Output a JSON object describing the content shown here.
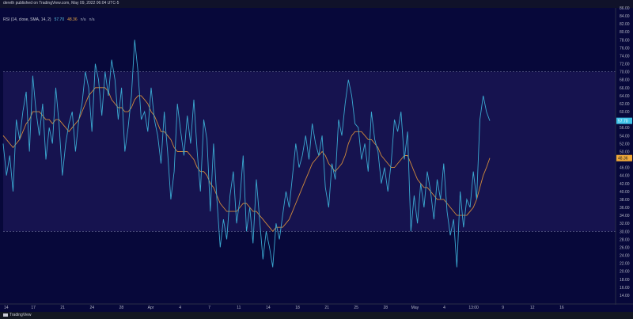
{
  "header": {
    "publish_text": "dereth published on TradingView.com, May 09, 2022 06:04 UTC-5"
  },
  "indicator": {
    "name": "RSI (14, close, SMA, 14, 2)",
    "value_rsi": "57.70",
    "value_ma": "48.36",
    "na1": "n/a",
    "na2": "n/a"
  },
  "footer": {
    "brand": "TradingView"
  },
  "colors": {
    "background": "#07083a",
    "band_fill": "#16134f",
    "rsi_line": "#3ba9d1",
    "ma_line": "#d08a3c",
    "rsi_label_bg": "#3ec3e8",
    "ma_label_bg": "#f0a93a"
  },
  "chart_data": {
    "type": "line",
    "title": "RSI (14, close, SMA, 14, 2)",
    "ylim": [
      12,
      86
    ],
    "y_ticks": [
      "86.00",
      "84.00",
      "82.00",
      "80.00",
      "78.00",
      "76.00",
      "74.00",
      "72.00",
      "70.00",
      "68.00",
      "66.00",
      "64.00",
      "62.00",
      "60.00",
      "58.00",
      "56.00",
      "54.00",
      "52.00",
      "50.00",
      "48.00",
      "46.00",
      "44.00",
      "42.00",
      "40.00",
      "38.00",
      "36.00",
      "34.00",
      "32.00",
      "30.00",
      "28.00",
      "26.00",
      "24.00",
      "22.00",
      "20.00",
      "18.00",
      "16.00",
      "14.00"
    ],
    "x_ticks": [
      "14",
      "17",
      "21",
      "24",
      "28",
      "Apr",
      "4",
      "7",
      "11",
      "14",
      "18",
      "21",
      "25",
      "28",
      "May",
      "4",
      "13:00",
      "9",
      "12",
      "16"
    ],
    "band": {
      "upper": 70,
      "lower": 30
    },
    "last_values": {
      "rsi": 57.7,
      "ma": 48.36
    },
    "series": [
      {
        "name": "RSI",
        "values": [
          52,
          44,
          49,
          40,
          58,
          53,
          60,
          65,
          50,
          69,
          60,
          54,
          62,
          48,
          56,
          52,
          66,
          57,
          44,
          52,
          57,
          60,
          50,
          58,
          62,
          70,
          66,
          55,
          72,
          68,
          59,
          70,
          64,
          73,
          68,
          58,
          66,
          50,
          56,
          64,
          78,
          70,
          58,
          60,
          55,
          66,
          58,
          54,
          47,
          60,
          50,
          38,
          45,
          62,
          55,
          49,
          59,
          52,
          63,
          50,
          40,
          58,
          53,
          35,
          52,
          38,
          26,
          33,
          28,
          39,
          45,
          32,
          38,
          49,
          30,
          36,
          27,
          43,
          33,
          23,
          30,
          26,
          21,
          32,
          28,
          34,
          40,
          36,
          44,
          52,
          46,
          49,
          54,
          48,
          57,
          52,
          49,
          54,
          41,
          36,
          47,
          43,
          58,
          54,
          62,
          68,
          64,
          57,
          56,
          48,
          52,
          45,
          60,
          53,
          50,
          42,
          46,
          40,
          47,
          58,
          55,
          60,
          48,
          55,
          30,
          39,
          32,
          42,
          36,
          45,
          40,
          33,
          43,
          38,
          47,
          35,
          29,
          33,
          21,
          40,
          31,
          38,
          36,
          45,
          38,
          58,
          64,
          60,
          57.7
        ],
        "ma": [
          54,
          53,
          52,
          51,
          52,
          53,
          55,
          57,
          58,
          60,
          60,
          60,
          59,
          58,
          58,
          57,
          58,
          58,
          57,
          56,
          55,
          56,
          57,
          58,
          60,
          62,
          64,
          65,
          66,
          66,
          66,
          66,
          65,
          63,
          62,
          61,
          61,
          60,
          60,
          61,
          63,
          64,
          64,
          63,
          62,
          60,
          59,
          57,
          55,
          55,
          54,
          53,
          51,
          50,
          50,
          50,
          50,
          49,
          48,
          46,
          45,
          45,
          44,
          42,
          41,
          39,
          37,
          36,
          35,
          35,
          35,
          35,
          36,
          37,
          37,
          36,
          35,
          35,
          34,
          33,
          32,
          31,
          30,
          31,
          31,
          31,
          32,
          33,
          35,
          37,
          39,
          41,
          43,
          45,
          47,
          48,
          49,
          50,
          49,
          47,
          46,
          45,
          46,
          47,
          49,
          52,
          54,
          55,
          55,
          55,
          54,
          53,
          53,
          52,
          51,
          49,
          48,
          47,
          46,
          46,
          47,
          48,
          49,
          49,
          47,
          45,
          43,
          42,
          41,
          41,
          40,
          39,
          38,
          38,
          38,
          37,
          36,
          35,
          34,
          34,
          34,
          34,
          35,
          36,
          38,
          41,
          44,
          46,
          48.36
        ]
      }
    ]
  }
}
